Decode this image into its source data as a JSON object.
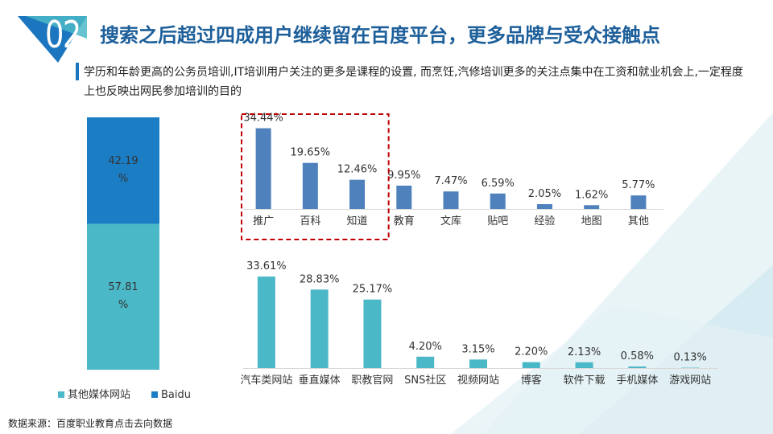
{
  "header": {
    "badge_number": "02",
    "title": "搜索之后超过四成用户继续留在百度平台，更多品牌与受众接触点",
    "subtitle": "学历和年龄更高的公务员培训,IT培训用户关注的更多是课程的设置, 而烹饪,汽修培训更多的关注点集中在工资和就业机会上,一定程度上也反映出网民参加培训的目的"
  },
  "footer": {
    "source": "数据来源：百度职业教育点击去向数据"
  },
  "colors": {
    "accent": "#1d5f9a",
    "baidu": "#1b7ec4",
    "other": "#4bb8c7",
    "bar_blue": "#4f81bd",
    "bar_teal": "#4bb8c7",
    "highlight": "#c00000"
  },
  "chart_data": [
    {
      "type": "bar",
      "stacked": true,
      "categories": [
        ""
      ],
      "series": [
        {
          "name": "其他媒体网站",
          "values": [
            57.81
          ],
          "value_labels": [
            "57.81\n%"
          ]
        },
        {
          "name": "Baidu",
          "values": [
            42.19
          ],
          "value_labels": [
            "42.19\n%"
          ]
        }
      ],
      "ylim": [
        0,
        100
      ],
      "legend": "bottom",
      "grid": false
    },
    {
      "type": "bar",
      "categories": [
        "推广",
        "百科",
        "知道",
        "教育",
        "文库",
        "贴吧",
        "经验",
        "地图",
        "其他"
      ],
      "values": [
        34.44,
        19.65,
        12.46,
        9.95,
        7.47,
        6.59,
        2.05,
        1.62,
        5.77
      ],
      "value_labels": [
        "34.44%",
        "19.65%",
        "12.46%",
        "9.95%",
        "7.47%",
        "6.59%",
        "2.05%",
        "1.62%",
        "5.77%"
      ],
      "highlighted_categories": [
        "推广",
        "百科",
        "知道"
      ],
      "ylim": [
        0,
        36
      ],
      "grid": false
    },
    {
      "type": "bar",
      "categories": [
        "汽车类网站",
        "垂直媒体",
        "职教官网",
        "SNS社区",
        "视频网站",
        "博客",
        "软件下载",
        "手机媒体",
        "游戏网站"
      ],
      "values": [
        33.61,
        28.83,
        25.17,
        4.2,
        3.15,
        2.2,
        2.13,
        0.58,
        0.13
      ],
      "value_labels": [
        "33.61%",
        "28.83%",
        "25.17%",
        "4.20%",
        "3.15%",
        "2.20%",
        "2.13%",
        "0.58%",
        "0.13%"
      ],
      "ylim": [
        0,
        36
      ],
      "grid": false
    }
  ]
}
